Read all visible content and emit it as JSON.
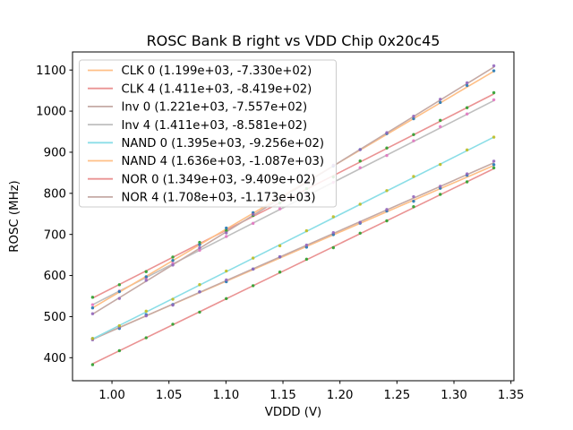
{
  "colors": {
    "background": "#ffffff",
    "text": "#000000",
    "spine": "#000000",
    "legend_border": "#cccccc",
    "legend_fill": "#ffffff"
  },
  "chart_data": {
    "type": "scatter",
    "title": "ROSC Bank B right vs VDD Chip 0x20c45",
    "xlabel": "VDDD (V)",
    "ylabel": "ROSC (MHz)",
    "xlim": [
      0.9654,
      1.3526
    ],
    "ylim": [
      344,
      1144
    ],
    "grid": false,
    "legend_position": "upper-left",
    "xtick_values": [
      1.0,
      1.05,
      1.1,
      1.15,
      1.2,
      1.25,
      1.3,
      1.35
    ],
    "xtick_labels": [
      "1.00",
      "1.05",
      "1.10",
      "1.15",
      "1.20",
      "1.25",
      "1.30",
      "1.35"
    ],
    "ytick_values": [
      400,
      500,
      600,
      700,
      800,
      900,
      1000,
      1100
    ],
    "ytick_labels": [
      "400",
      "500",
      "600",
      "700",
      "800",
      "900",
      "1000",
      "1100"
    ],
    "x": [
      0.983,
      1.0065,
      1.03,
      1.0534,
      1.0769,
      1.1003,
      1.1238,
      1.1473,
      1.1707,
      1.1942,
      1.2177,
      1.2411,
      1.2646,
      1.288,
      1.3115,
      1.335
    ],
    "series": [
      {
        "name": "CLK 0",
        "legend_label": "CLK 0 (1.199e+03, -7.330e+02)",
        "slope": 1199.0,
        "intercept": -733.0,
        "line_color": "#ffbf86",
        "marker_color": "#1f77b4",
        "y": [
          446.6,
          471.2,
          505.0,
          529.5,
          560.3,
          584.9,
          615.7,
          645.3,
          669.0,
          699.6,
          727.4,
          757.0,
          780.7,
          812.3,
          844.1,
          869.7
        ]
      },
      {
        "name": "CLK 4",
        "legend_label": "CLK 4 (1.411e+03, -8.419e+02)",
        "slope": 1411.0,
        "intercept": -841.9,
        "line_color": "#ea9393",
        "marker_color": "#2ca02c",
        "y": [
          547.1,
          577.6,
          609.4,
          644.9,
          680.7,
          709.2,
          746.1,
          776.5,
          811.4,
          839.8,
          878.7,
          910.2,
          943.0,
          977.5,
          1008.3,
          1044.8
        ]
      },
      {
        "name": "Inv 0",
        "legend_label": "Inv 0 (1.221e+03, -7.557e+02)",
        "slope": 1221.0,
        "intercept": -755.7,
        "line_color": "#c5aaa5",
        "marker_color": "#9467bd",
        "y": [
          443.5,
          474.6,
          501.9,
          528.0,
          560.3,
          589.4,
          615.7,
          645.8,
          674.1,
          704.2,
          729.5,
          760.6,
          791.9,
          817.0,
          847.3,
          878.3
        ]
      },
      {
        "name": "Inv 4",
        "legend_label": "Inv 4 (1.411e+03, -8.581e+02)",
        "slope": 1411.0,
        "intercept": -858.1,
        "line_color": "#bfbfbf",
        "marker_color": "#e377c2",
        "y": [
          528.9,
          562.4,
          593.2,
          629.7,
          661.5,
          695.0,
          726.9,
          762.3,
          795.2,
          826.6,
          862.5,
          892.0,
          927.8,
          962.3,
          993.1,
          1027.6
        ]
      },
      {
        "name": "NAND 0",
        "legend_label": "NAND 0 (1.395e+03, -9.256e+02)",
        "slope": 1395.0,
        "intercept": -925.6,
        "line_color": "#8bdee7",
        "marker_color": "#bcbd22",
        "y": [
          446.7,
          477.8,
          513.3,
          542.3,
          577.8,
          610.9,
          642.4,
          672.4,
          708.9,
          743.0,
          773.5,
          806.6,
          841.1,
          870.2,
          905.6,
          936.7
        ]
      },
      {
        "name": "NAND 4",
        "legend_label": "NAND 4 (1.636e+03, -1.087e+03)",
        "slope": 1636.0,
        "intercept": -1087.0,
        "line_color": "#ffbf86",
        "marker_color": "#1f77b4",
        "y": [
          521.2,
          560.8,
          597.1,
          636.7,
          675.0,
          715.6,
          752.9,
          787.5,
          830.8,
          866.4,
          906.6,
          945.3,
          981.5,
          1021.2,
          1062.4,
          1098.1
        ]
      },
      {
        "name": "NOR 0",
        "legend_label": "NOR 0 (1.349e+03, -9.409e+02)",
        "slope": 1349.0,
        "intercept": -940.9,
        "line_color": "#ea9393",
        "marker_color": "#2ca02c",
        "y": [
          383.1,
          417.1,
          448.5,
          481.5,
          510.9,
          543.9,
          575.3,
          608.3,
          639.7,
          667.7,
          703.1,
          733.1,
          767.5,
          797.5,
          827.9,
          861.9
        ]
      },
      {
        "name": "NOR 4",
        "legend_label": "NOR 4 (1.708e+03, -1.173e+03)",
        "slope": 1708.0,
        "intercept": -1173.0,
        "line_color": "#c5aaa5",
        "marker_color": "#9467bd",
        "y": [
          507.0,
          544.2,
          588.2,
          625.5,
          667.5,
          703.8,
          748.8,
          787.1,
          827.1,
          868.4,
          906.3,
          947.6,
          987.6,
          1028.9,
          1068.9,
          1110.2
        ]
      }
    ]
  }
}
